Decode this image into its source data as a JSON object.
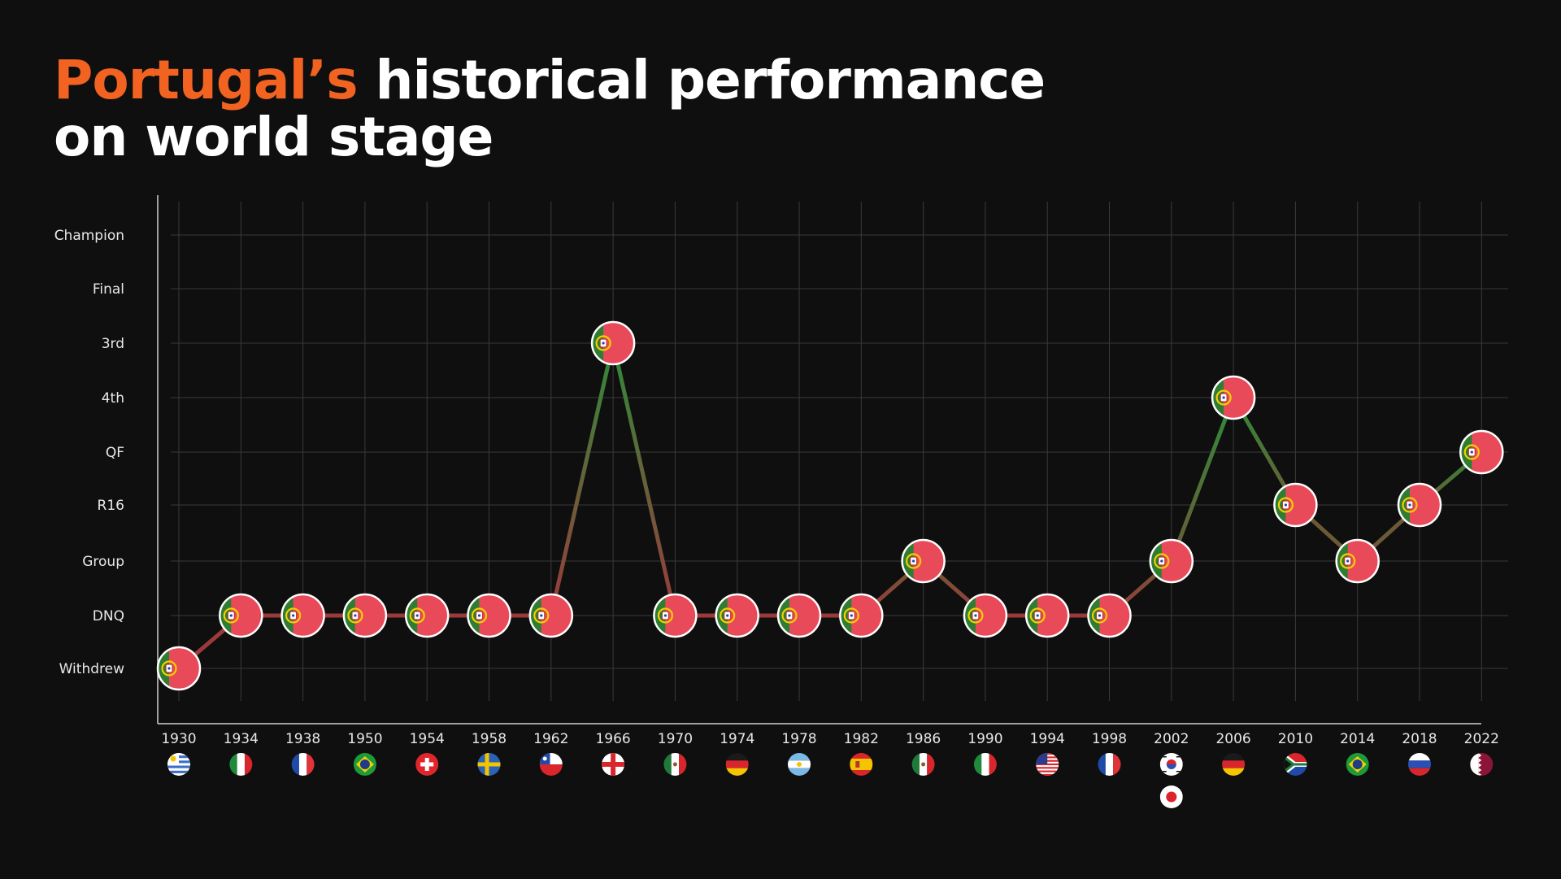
{
  "header": {
    "title_accent": "Portugal’s",
    "title_rest": " historical performance",
    "title_line2": "on world stage"
  },
  "colors": {
    "background": "#0f0f0f",
    "accent": "#f26322",
    "marker_fill": "#e94a5a",
    "marker_stroke": "#ffffff",
    "rise": "#2e8b3a",
    "flat": "#9b3a3a",
    "grid": "#3a3a3a"
  },
  "chart_data": {
    "type": "line",
    "title": "Portugal’s historical performance on world stage",
    "y_categories": [
      "Withdrew",
      "DNQ",
      "Group",
      "R16",
      "QF",
      "4th",
      "3rd",
      "Final",
      "Champion"
    ],
    "x": [
      "1930",
      "1934",
      "1938",
      "1950",
      "1954",
      "1958",
      "1962",
      "1966",
      "1970",
      "1974",
      "1978",
      "1982",
      "1986",
      "1990",
      "1994",
      "1998",
      "2002",
      "2006",
      "2010",
      "2014",
      "2018",
      "2022"
    ],
    "series": [
      {
        "values": [
          "Withdrew",
          "DNQ",
          "DNQ",
          "DNQ",
          "DNQ",
          "DNQ",
          "DNQ",
          "3rd",
          "DNQ",
          "DNQ",
          "DNQ",
          "DNQ",
          "Group",
          "DNQ",
          "DNQ",
          "DNQ",
          "Group",
          "4th",
          "R16",
          "Group",
          "R16",
          "QF"
        ]
      }
    ],
    "host_flags": [
      [
        "uruguay-flag-icon"
      ],
      [
        "italy-flag-icon"
      ],
      [
        "france-flag-icon"
      ],
      [
        "brazil-flag-icon"
      ],
      [
        "switzerland-flag-icon"
      ],
      [
        "sweden-flag-icon"
      ],
      [
        "chile-flag-icon"
      ],
      [
        "england-flag-icon"
      ],
      [
        "mexico-flag-icon"
      ],
      [
        "germany-flag-icon"
      ],
      [
        "argentina-flag-icon"
      ],
      [
        "spain-flag-icon"
      ],
      [
        "mexico-flag-icon"
      ],
      [
        "italy-flag-icon"
      ],
      [
        "usa-flag-icon"
      ],
      [
        "france-flag-icon"
      ],
      [
        "south-korea-flag-icon",
        "japan-flag-icon"
      ],
      [
        "germany-flag-icon"
      ],
      [
        "south-africa-flag-icon"
      ],
      [
        "brazil-flag-icon"
      ],
      [
        "russia-flag-icon"
      ],
      [
        "qatar-flag-icon"
      ]
    ],
    "marker_icon": "portugal-flag-icon",
    "grid": true,
    "legend": "none"
  }
}
